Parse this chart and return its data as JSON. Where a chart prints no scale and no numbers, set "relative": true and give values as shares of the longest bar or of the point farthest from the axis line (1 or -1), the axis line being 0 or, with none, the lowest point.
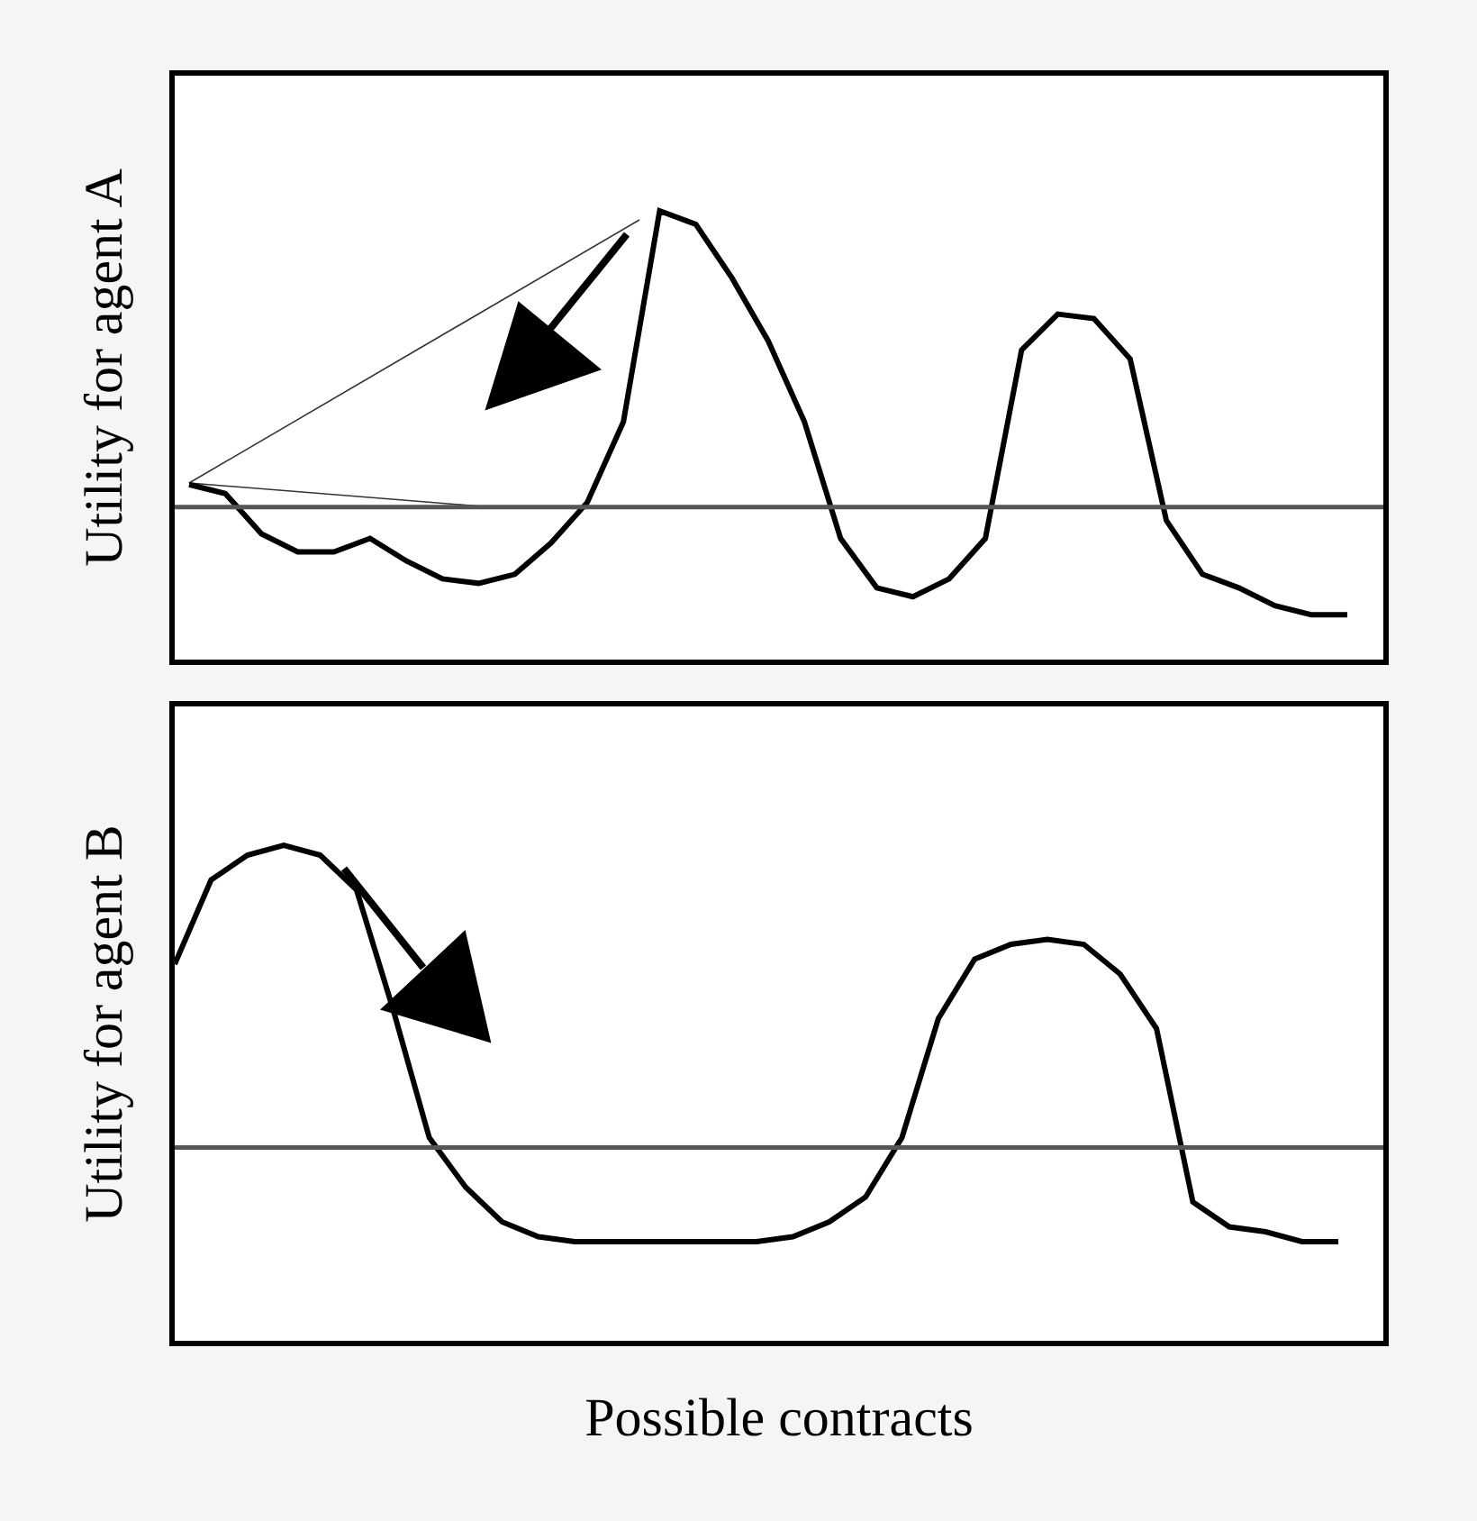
{
  "chart_data": [
    {
      "type": "line",
      "relative": true,
      "ylabel": "Utility for agent A",
      "tick_labels": false,
      "categories": [
        null,
        null,
        null,
        null,
        null,
        null,
        null,
        null,
        null,
        null,
        null,
        null,
        null,
        null,
        null,
        null,
        null,
        null,
        null,
        null,
        null,
        null,
        null,
        null,
        null,
        null,
        null,
        null,
        null,
        null,
        null,
        null,
        null
      ],
      "series": [
        {
          "color": "#000000",
          "values": [
            0.39,
            0.37,
            0.28,
            0.24,
            0.24,
            0.27,
            0.22,
            0.18,
            0.17,
            0.19,
            0.26,
            0.35,
            0.53,
            1.0,
            0.97,
            0.85,
            0.71,
            0.53,
            0.27,
            0.16,
            0.14,
            0.18,
            0.27,
            0.69,
            0.77,
            0.76,
            0.67,
            0.31,
            0.19,
            0.16,
            0.12,
            0.1,
            0.1
          ]
        }
      ],
      "ref_lines": [
        {
          "axis": "y",
          "value": 0.34,
          "color": "#555555"
        }
      ]
    },
    {
      "type": "line",
      "relative": true,
      "ylabel": "Utility for agent B",
      "xlabel": "Possible contracts",
      "tick_labels": false,
      "categories": [
        null,
        null,
        null,
        null,
        null,
        null,
        null,
        null,
        null,
        null,
        null,
        null,
        null,
        null,
        null,
        null,
        null,
        null,
        null,
        null,
        null,
        null,
        null,
        null,
        null,
        null,
        null,
        null,
        null,
        null,
        null,
        null,
        null
      ],
      "series": [
        {
          "color": "#000000",
          "values": [
            0.76,
            0.93,
            0.98,
            1.0,
            0.98,
            0.91,
            0.67,
            0.41,
            0.31,
            0.24,
            0.21,
            0.2,
            0.2,
            0.2,
            0.2,
            0.2,
            0.2,
            0.21,
            0.24,
            0.29,
            0.41,
            0.65,
            0.77,
            0.8,
            0.81,
            0.8,
            0.74,
            0.63,
            0.28,
            0.23,
            0.22,
            0.2,
            0.2
          ]
        }
      ],
      "ref_lines": [
        {
          "axis": "y",
          "value": 0.39,
          "color": "#555555"
        }
      ]
    }
  ]
}
